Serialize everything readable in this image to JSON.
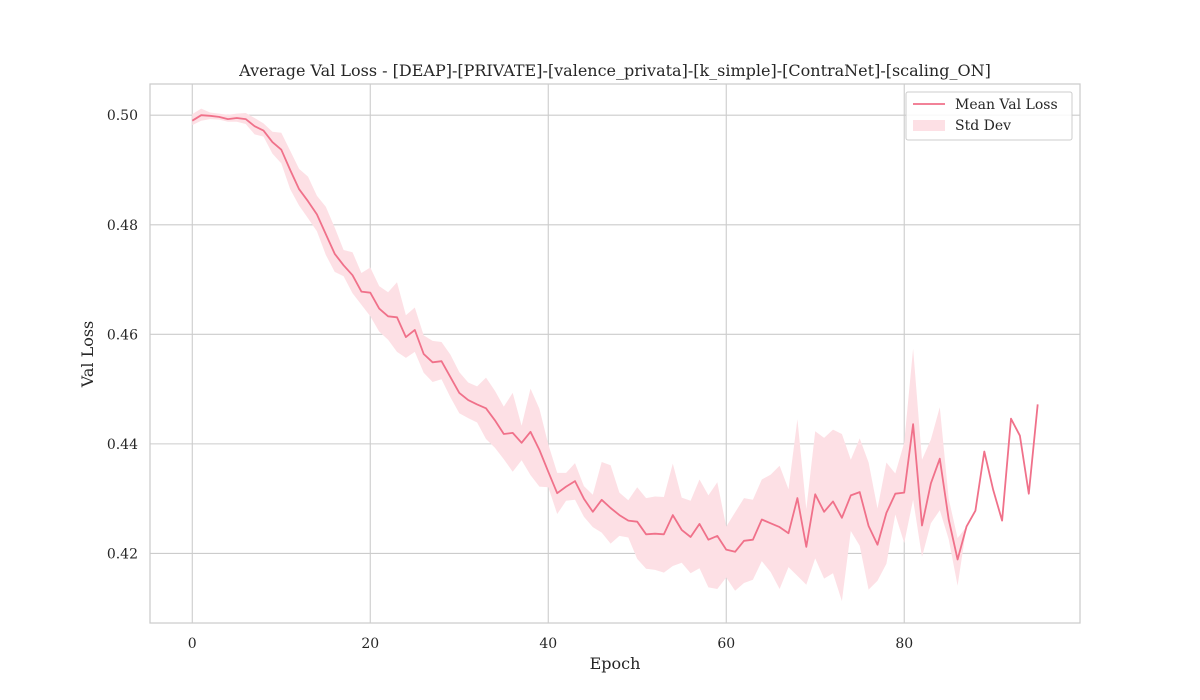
{
  "chart_data": {
    "type": "line",
    "title": "Average Val Loss - [DEAP]-[PRIVATE]-[valence_privata]-[k_simple]-[ContraNet]-[scaling_ON]",
    "xlabel": "Epoch",
    "ylabel": "Val Loss",
    "xlim": [
      -4.75,
      99.75
    ],
    "ylim": [
      0.4073,
      0.5057
    ],
    "xticks": [
      0,
      20,
      40,
      60,
      80
    ],
    "yticks": [
      0.42,
      0.44,
      0.46,
      0.48,
      0.5
    ],
    "xtick_labels": [
      "0",
      "20",
      "40",
      "60",
      "80"
    ],
    "ytick_labels": [
      "0.42",
      "0.44",
      "0.46",
      "0.48",
      "0.50"
    ],
    "grid": true,
    "legend": {
      "placement": "top-right",
      "entries": [
        {
          "label": "Mean Val Loss",
          "kind": "line"
        },
        {
          "label": "Std Dev",
          "kind": "band"
        }
      ]
    },
    "colors": {
      "line": "#f0718a",
      "band": "#fde0e5",
      "grid": "#cccccc",
      "spine": "#cccccc"
    },
    "series": [
      {
        "name": "Mean Val Loss",
        "x": [
          0,
          1,
          2,
          3,
          4,
          5,
          6,
          7,
          8,
          9,
          10,
          11,
          12,
          13,
          14,
          15,
          16,
          17,
          18,
          19,
          20,
          21,
          22,
          23,
          24,
          25,
          26,
          27,
          28,
          29,
          30,
          31,
          32,
          33,
          34,
          35,
          36,
          37,
          38,
          39,
          40,
          41,
          42,
          43,
          44,
          45,
          46,
          47,
          48,
          49,
          50,
          51,
          52,
          53,
          54,
          55,
          56,
          57,
          58,
          59,
          60,
          61,
          62,
          63,
          64,
          65,
          66,
          67,
          68,
          69,
          70,
          71,
          72,
          73,
          74,
          75,
          76,
          77,
          78,
          79,
          80,
          81,
          82,
          83,
          84,
          85,
          86,
          87,
          88,
          89,
          90,
          91,
          92,
          93,
          94,
          95
        ],
        "y": [
          0.499,
          0.5,
          0.4999,
          0.4997,
          0.4993,
          0.4995,
          0.4993,
          0.498,
          0.4972,
          0.4951,
          0.4937,
          0.49,
          0.4865,
          0.4843,
          0.4819,
          0.4783,
          0.4747,
          0.4726,
          0.4708,
          0.4678,
          0.4676,
          0.4647,
          0.4633,
          0.4631,
          0.4595,
          0.4608,
          0.4564,
          0.4549,
          0.4551,
          0.4522,
          0.4493,
          0.448,
          0.4472,
          0.4465,
          0.4443,
          0.4418,
          0.442,
          0.4402,
          0.4422,
          0.4389,
          0.4349,
          0.431,
          0.4322,
          0.4332,
          0.43,
          0.4276,
          0.4298,
          0.4283,
          0.427,
          0.426,
          0.4258,
          0.4235,
          0.4236,
          0.4235,
          0.427,
          0.4243,
          0.423,
          0.4254,
          0.4225,
          0.4232,
          0.4207,
          0.4203,
          0.4223,
          0.4225,
          0.4262,
          0.4255,
          0.4248,
          0.4237,
          0.4301,
          0.4212,
          0.4308,
          0.4276,
          0.4295,
          0.4265,
          0.4306,
          0.4312,
          0.425,
          0.4216,
          0.4274,
          0.4309,
          0.4311,
          0.4436,
          0.4251,
          0.4328,
          0.4373,
          0.4262,
          0.4189,
          0.4249,
          0.4278,
          0.4386,
          0.4316,
          0.426,
          0.4446,
          0.4415,
          0.4309,
          0.4472
        ]
      }
    ],
    "band": {
      "name": "Std Dev",
      "x": [
        0,
        1,
        2,
        3,
        4,
        5,
        6,
        7,
        8,
        9,
        10,
        11,
        12,
        13,
        14,
        15,
        16,
        17,
        18,
        19,
        20,
        21,
        22,
        23,
        24,
        25,
        26,
        27,
        28,
        29,
        30,
        31,
        32,
        33,
        34,
        35,
        36,
        37,
        38,
        39,
        40,
        41,
        42,
        43,
        44,
        45,
        46,
        47,
        48,
        49,
        50,
        51,
        52,
        53,
        54,
        55,
        56,
        57,
        58,
        59,
        60,
        61,
        62,
        63,
        64,
        65,
        66,
        67,
        68,
        69,
        70,
        71,
        72,
        73,
        74,
        75,
        76,
        77,
        78,
        79,
        80,
        81,
        82,
        83,
        84,
        85,
        86,
        87,
        88
      ],
      "upper": [
        0.5002,
        0.5012,
        0.5005,
        0.5003,
        0.5001,
        0.5003,
        0.5004,
        0.4995,
        0.4985,
        0.497,
        0.4968,
        0.4935,
        0.4902,
        0.4888,
        0.4853,
        0.4833,
        0.4795,
        0.4754,
        0.475,
        0.4712,
        0.4722,
        0.4688,
        0.4677,
        0.4695,
        0.4635,
        0.4649,
        0.4598,
        0.4588,
        0.4586,
        0.4563,
        0.4531,
        0.4512,
        0.4505,
        0.4521,
        0.4497,
        0.4468,
        0.4493,
        0.4433,
        0.4501,
        0.4464,
        0.4399,
        0.4347,
        0.4347,
        0.4365,
        0.4323,
        0.4307,
        0.4367,
        0.4361,
        0.4311,
        0.4297,
        0.4321,
        0.4301,
        0.4304,
        0.4303,
        0.4364,
        0.4302,
        0.4296,
        0.4335,
        0.4306,
        0.433,
        0.4249,
        0.4275,
        0.4301,
        0.4298,
        0.4335,
        0.4344,
        0.436,
        0.4317,
        0.4445,
        0.4281,
        0.4423,
        0.4411,
        0.4426,
        0.4418,
        0.4371,
        0.441,
        0.4366,
        0.4282,
        0.4366,
        0.4346,
        0.4402,
        0.4574,
        0.4371,
        0.4408,
        0.4467,
        0.43,
        0.4228,
        0.4249,
        0.4278
      ],
      "lower": [
        0.4982,
        0.499,
        0.4993,
        0.4992,
        0.4988,
        0.4988,
        0.4984,
        0.4965,
        0.4961,
        0.493,
        0.4912,
        0.4865,
        0.4835,
        0.4812,
        0.4788,
        0.4745,
        0.4714,
        0.4706,
        0.4675,
        0.4654,
        0.4633,
        0.4605,
        0.459,
        0.4568,
        0.4557,
        0.4568,
        0.453,
        0.4513,
        0.4518,
        0.4485,
        0.4456,
        0.4447,
        0.4439,
        0.4409,
        0.4393,
        0.4372,
        0.4349,
        0.437,
        0.4343,
        0.4322,
        0.4321,
        0.4272,
        0.4296,
        0.4298,
        0.4267,
        0.4248,
        0.4238,
        0.4218,
        0.4232,
        0.4229,
        0.419,
        0.4172,
        0.417,
        0.4165,
        0.4177,
        0.4183,
        0.4164,
        0.4173,
        0.4138,
        0.4135,
        0.4156,
        0.4132,
        0.4146,
        0.4152,
        0.4186,
        0.4166,
        0.4135,
        0.4175,
        0.4159,
        0.4143,
        0.4191,
        0.4154,
        0.4164,
        0.4113,
        0.4241,
        0.4214,
        0.4134,
        0.415,
        0.4181,
        0.4271,
        0.4219,
        0.4298,
        0.4194,
        0.4255,
        0.4279,
        0.4226,
        0.4141,
        0.4249,
        0.4278
      ]
    }
  }
}
